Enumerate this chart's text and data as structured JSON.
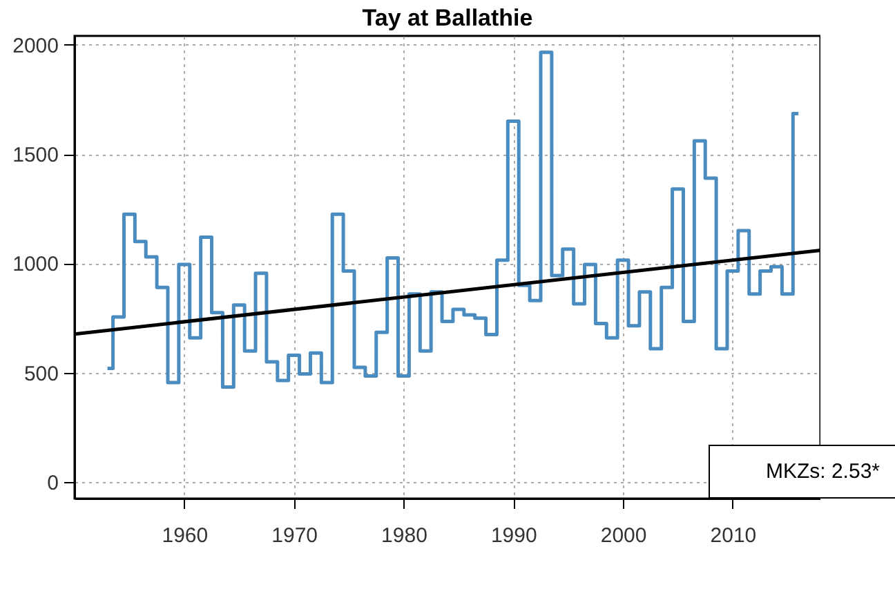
{
  "chart_data": {
    "type": "step",
    "title": "Tay at Ballathie",
    "x": [
      1953,
      1954,
      1955,
      1956,
      1957,
      1958,
      1959,
      1960,
      1961,
      1962,
      1963,
      1964,
      1965,
      1966,
      1967,
      1968,
      1969,
      1970,
      1971,
      1972,
      1973,
      1974,
      1975,
      1976,
      1977,
      1978,
      1979,
      1980,
      1981,
      1982,
      1983,
      1984,
      1985,
      1986,
      1987,
      1988,
      1989,
      1990,
      1991,
      1992,
      1993,
      1994,
      1995,
      1996,
      1997,
      1998,
      1999,
      2000,
      2001,
      2002,
      2003,
      2004,
      2005,
      2006,
      2007,
      2008,
      2009,
      2010,
      2011,
      2012,
      2013,
      2014,
      2015,
      2016
    ],
    "series": [
      {
        "color": "#4a8cc0",
        "values": [
          520,
          755,
          1225,
          1100,
          1030,
          890,
          455,
          995,
          660,
          1120,
          775,
          435,
          810,
          600,
          955,
          550,
          465,
          580,
          495,
          590,
          455,
          1225,
          965,
          525,
          485,
          685,
          1025,
          485,
          860,
          600,
          870,
          735,
          790,
          765,
          750,
          675,
          1015,
          1650,
          900,
          830,
          1965,
          945,
          1065,
          815,
          995,
          725,
          660,
          1015,
          715,
          870,
          610,
          890,
          1340,
          735,
          1560,
          1390,
          610,
          965,
          1150,
          860,
          965,
          985,
          860,
          1685
        ]
      },
      {
        "type": "line",
        "color": "#000000",
        "x": [
          1950,
          2018
        ],
        "values": [
          677,
          1060
        ]
      }
    ],
    "xlim": [
      1950,
      2018
    ],
    "xticks": [
      1960,
      1970,
      1980,
      1990,
      2000,
      2010
    ],
    "ylim": [
      -75,
      2040
    ],
    "yticks": [
      0,
      500,
      1000,
      1500,
      2000
    ],
    "grid": true,
    "annotations": [
      "MKZs: 2.53*"
    ]
  }
}
